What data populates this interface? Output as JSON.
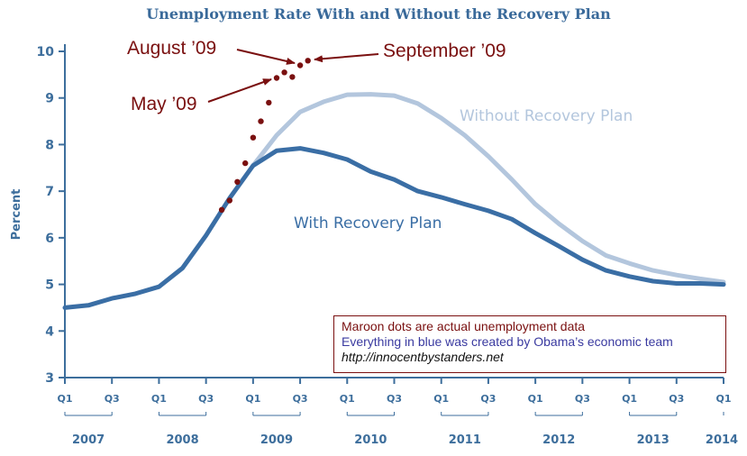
{
  "chart_data": {
    "type": "line",
    "title": "Unemployment Rate With and Without the Recovery Plan",
    "ylabel": "Percent",
    "xlabel": "",
    "ylim": [
      3,
      10
    ],
    "yticks": [
      3,
      4,
      5,
      6,
      7,
      8,
      9,
      10
    ],
    "x_ticks": [
      {
        "x": 2007.0,
        "label": "Q1"
      },
      {
        "x": 2007.5,
        "label": "Q3"
      },
      {
        "x": 2008.0,
        "label": "Q1"
      },
      {
        "x": 2008.5,
        "label": "Q3"
      },
      {
        "x": 2009.0,
        "label": "Q1"
      },
      {
        "x": 2009.5,
        "label": "Q3"
      },
      {
        "x": 2010.0,
        "label": "Q1"
      },
      {
        "x": 2010.5,
        "label": "Q3"
      },
      {
        "x": 2011.0,
        "label": "Q1"
      },
      {
        "x": 2011.5,
        "label": "Q3"
      },
      {
        "x": 2012.0,
        "label": "Q1"
      },
      {
        "x": 2012.5,
        "label": "Q3"
      },
      {
        "x": 2013.0,
        "label": "Q1"
      },
      {
        "x": 2013.5,
        "label": "Q3"
      },
      {
        "x": 2014.0,
        "label": "Q1"
      }
    ],
    "years": [
      "2007",
      "2008",
      "2009",
      "2010",
      "2011",
      "2012",
      "2013",
      "2014"
    ],
    "series": [
      {
        "name": "With Recovery Plan",
        "color": "#3a6ea5",
        "x": [
          2007.0,
          2007.25,
          2007.5,
          2007.75,
          2008.0,
          2008.25,
          2008.5,
          2008.75,
          2009.0,
          2009.25,
          2009.5,
          2009.75,
          2010.0,
          2010.25,
          2010.5,
          2010.75,
          2011.0,
          2011.25,
          2011.5,
          2011.75,
          2012.0,
          2012.25,
          2012.5,
          2012.75,
          2013.0,
          2013.25,
          2013.5,
          2013.75,
          2014.0
        ],
        "values": [
          4.5,
          4.55,
          4.7,
          4.8,
          4.95,
          5.35,
          6.05,
          6.85,
          7.55,
          7.87,
          7.92,
          7.82,
          7.68,
          7.42,
          7.25,
          7.0,
          6.87,
          6.72,
          6.58,
          6.4,
          6.1,
          5.82,
          5.53,
          5.3,
          5.17,
          5.07,
          5.02,
          5.02,
          5.0
        ]
      },
      {
        "name": "Without Recovery Plan",
        "color": "#b3c6dd",
        "x": [
          2009.0,
          2009.25,
          2009.5,
          2009.75,
          2010.0,
          2010.25,
          2010.5,
          2010.75,
          2011.0,
          2011.25,
          2011.5,
          2011.75,
          2012.0,
          2012.25,
          2012.5,
          2012.75,
          2013.0,
          2013.25,
          2013.5,
          2013.75,
          2014.0
        ],
        "values": [
          7.55,
          8.2,
          8.7,
          8.92,
          9.07,
          9.08,
          9.05,
          8.88,
          8.57,
          8.2,
          7.75,
          7.25,
          6.72,
          6.3,
          5.93,
          5.62,
          5.45,
          5.3,
          5.2,
          5.12,
          5.05
        ]
      },
      {
        "name": "",
        "color": "#7a1010",
        "x": [
          2008.667,
          2008.75,
          2008.833,
          2008.917,
          2009.0,
          2009.083,
          2009.167,
          2009.25,
          2009.333,
          2009.417,
          2009.5,
          2009.583
        ],
        "values": [
          6.6,
          6.8,
          7.2,
          7.6,
          8.15,
          8.5,
          8.9,
          9.43,
          9.55,
          9.45,
          9.7,
          9.8
        ]
      }
    ],
    "series_labels": {
      "with": "With Recovery Plan",
      "without": "Without Recovery Plan"
    },
    "annotations": {
      "august": "August ’09",
      "september": "September ’09",
      "may": "May ’09"
    },
    "note": {
      "line1": "Maroon dots are actual unemployment data",
      "line2": "Everything in blue was created by Obama’s economic team",
      "line3": "http://innocentbystanders.net"
    },
    "colors": {
      "axis": "#3d6e9c",
      "with": "#3a6ea5",
      "without": "#b3c6dd",
      "actual": "#7a1010"
    },
    "grid": false
  }
}
